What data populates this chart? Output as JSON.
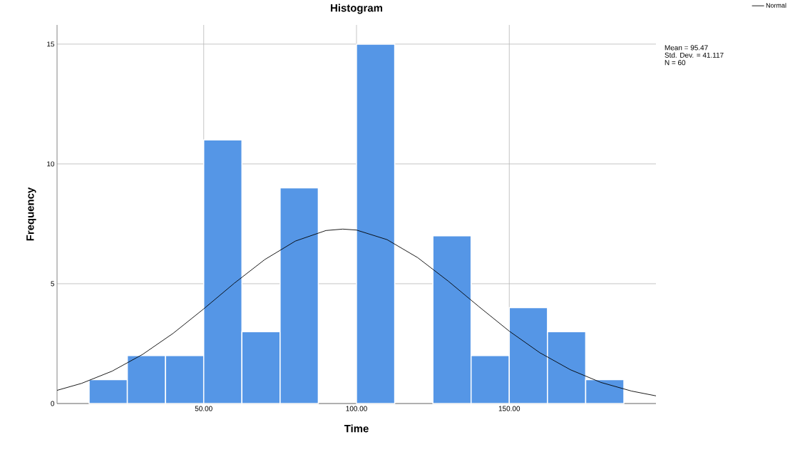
{
  "chart_data": {
    "type": "histogram",
    "title": "Histogram",
    "xlabel": "Time",
    "ylabel": "Frequency",
    "series": [
      {
        "color": "#5596e6",
        "bins": [
          12.5,
          25,
          37.5,
          50,
          62.5,
          75,
          87.5,
          100,
          112.5,
          125,
          137.5,
          150,
          162.5,
          175,
          187.5
        ],
        "values": [
          1,
          2,
          2,
          11,
          3,
          9,
          0,
          15,
          0,
          7,
          2,
          4,
          3,
          1
        ]
      },
      {
        "type": "line",
        "name": "Normal",
        "color": "#000000",
        "x": [
          2,
          10,
          20,
          30,
          40,
          50,
          60,
          70,
          80,
          90,
          95.5,
          100,
          110,
          120,
          130,
          140,
          150,
          160,
          170,
          180,
          190,
          198
        ],
        "values": [
          0.55,
          0.84,
          1.35,
          2.05,
          2.93,
          3.95,
          5.02,
          6.01,
          6.78,
          7.22,
          7.28,
          7.24,
          6.84,
          6.09,
          5.11,
          4.05,
          3.02,
          2.12,
          1.41,
          0.88,
          0.52,
          0.32
        ]
      }
    ],
    "xlim": [
      2,
      198
    ],
    "ylim": [
      0,
      15.8
    ],
    "xticks": [
      {
        "value": 50,
        "label": "50.00"
      },
      {
        "value": 100,
        "label": "100.00"
      },
      {
        "value": 150,
        "label": "150.00"
      }
    ],
    "yticks": [
      0,
      5,
      10,
      15
    ],
    "grid": true,
    "legend": "top right",
    "annotations": [
      "Mean = 95.47",
      "Std. Dev. = 41.117",
      "N = 60"
    ]
  }
}
